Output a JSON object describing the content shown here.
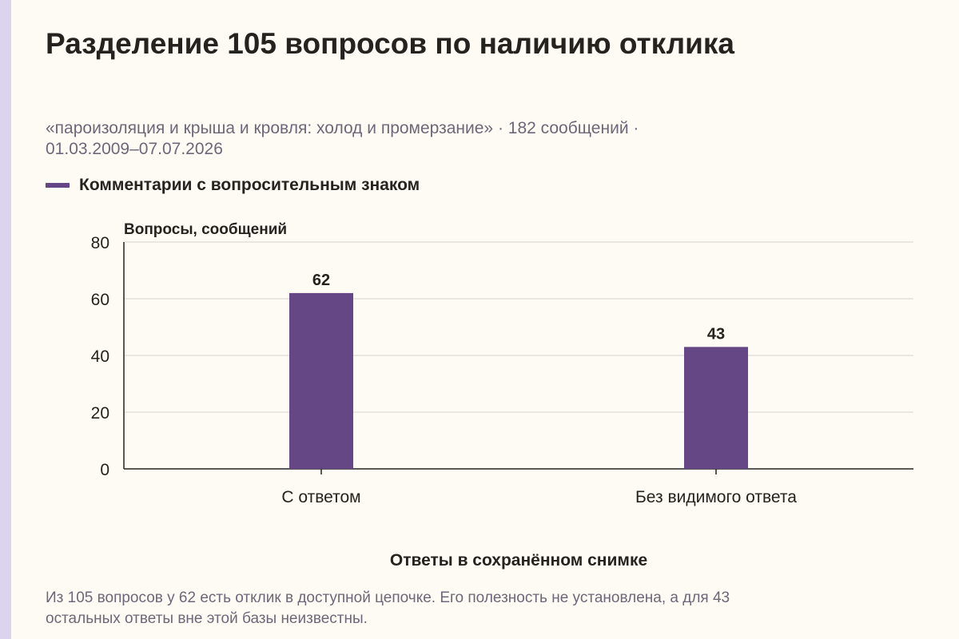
{
  "title": "Разделение 105 вопросов по наличию отклика",
  "subtitle_line1": "«пароизоляция и крыша и кровля: холод и промерзание» · 182 сообщений ·",
  "subtitle_line2": "01.03.2009–07.07.2026",
  "legend": {
    "label": "Комментарии с вопросительным знаком",
    "color": "#654785"
  },
  "chart_data": {
    "type": "bar",
    "categories": [
      "С ответом",
      "Без видимого ответа"
    ],
    "series": [
      {
        "name": "Комментарии с вопросительным знаком",
        "values": [
          62,
          43
        ]
      }
    ],
    "ylabel": "Вопросы, сообщений",
    "xlabel": "Ответы в сохранённом снимке",
    "ylim": [
      0,
      80
    ],
    "yticks": [
      0,
      20,
      40,
      60,
      80
    ],
    "data_labels": true,
    "grid": true,
    "bar_color": "#654785"
  },
  "note_line1": "Из 105 вопросов у 62 есть отклик в доступной цепочке. Его полезность не установлена, а для 43",
  "note_line2": "остальных ответы вне этой базы неизвестны."
}
